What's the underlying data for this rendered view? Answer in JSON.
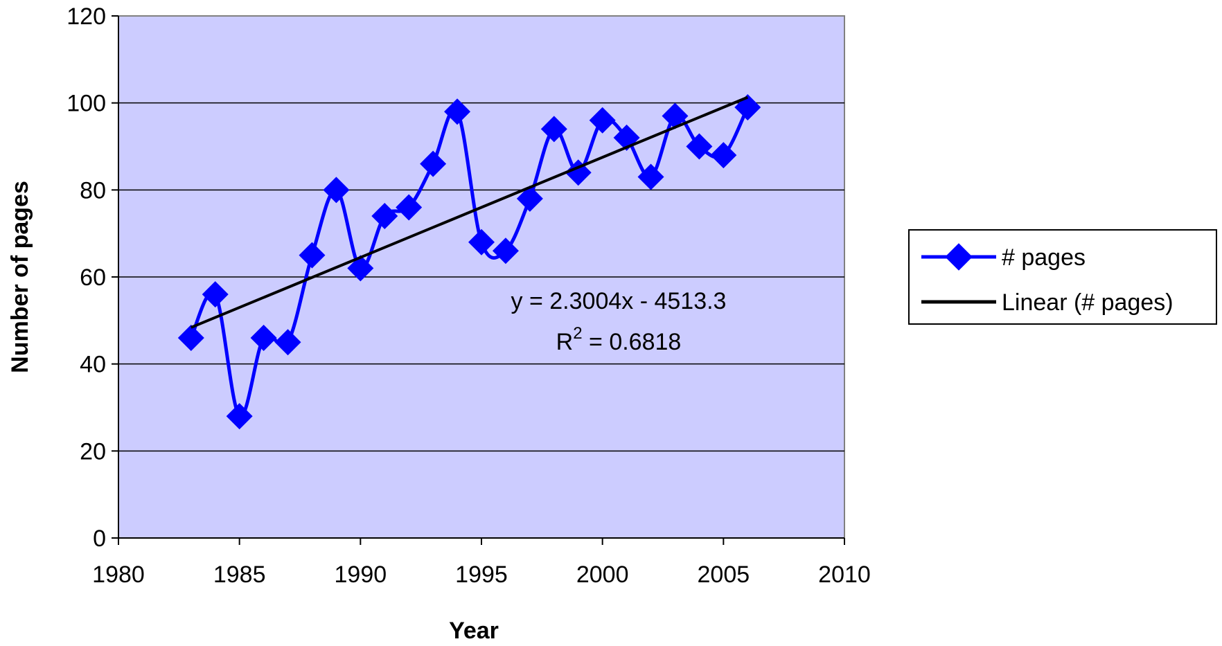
{
  "chart_data": {
    "type": "scatter",
    "xlabel": "Year",
    "ylabel": "Number of pages",
    "xlim": [
      1980,
      2010
    ],
    "ylim": [
      0,
      120
    ],
    "x_ticks": [
      1980,
      1985,
      1990,
      1995,
      2000,
      2005,
      2010
    ],
    "y_ticks": [
      0,
      20,
      40,
      60,
      80,
      100,
      120
    ],
    "grid": "horizontal",
    "legend_position": "right",
    "plot_background": "#ccccff",
    "series": [
      {
        "name": "# pages",
        "style": "smoothed-line-with-diamond-markers",
        "color": "#0000ff",
        "x": [
          1983,
          1984,
          1985,
          1986,
          1987,
          1988,
          1989,
          1990,
          1991,
          1992,
          1993,
          1994,
          1995,
          1996,
          1997,
          1998,
          1999,
          2000,
          2001,
          2002,
          2003,
          2004,
          2005,
          2006
        ],
        "y": [
          46,
          56,
          28,
          46,
          45,
          65,
          80,
          62,
          74,
          76,
          86,
          98,
          68,
          66,
          78,
          94,
          84,
          96,
          92,
          83,
          97,
          90,
          88,
          99
        ]
      },
      {
        "name": "Linear (# pages)",
        "style": "linear-trendline",
        "color": "#000000",
        "slope": 2.3004,
        "intercept": -4513.3,
        "x_range": [
          1983,
          2006
        ]
      }
    ],
    "annotations": {
      "equation": "y = 2.3004x - 4513.3",
      "r2_label": "R",
      "r2_exponent": "2",
      "r2_value": " = 0.6818"
    }
  }
}
